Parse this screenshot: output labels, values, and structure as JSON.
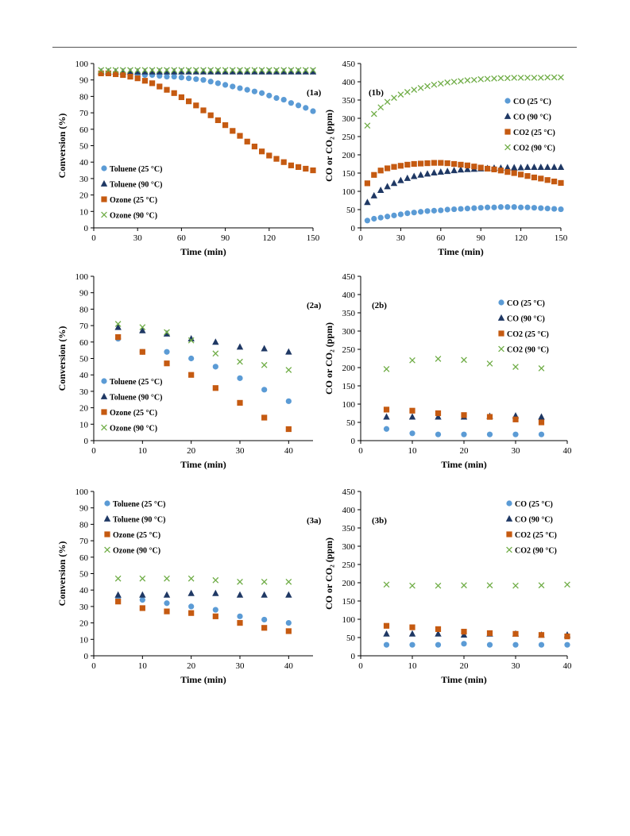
{
  "markers": {
    "circle": "#5b9bd5",
    "triangle": "#1f3864",
    "square": "#c55a11",
    "cross": "#70ad47"
  },
  "chart_data": [
    {
      "id": "1a",
      "type": "scatter",
      "panel_label": "(1a)",
      "xlabel": "Time (min)",
      "ylabel": "Conversion (%)",
      "xlim": [
        0,
        150
      ],
      "ylim": [
        0,
        100
      ],
      "xticks": [
        0,
        30,
        60,
        90,
        120,
        150
      ],
      "yticks": [
        0,
        10,
        20,
        30,
        40,
        50,
        60,
        70,
        80,
        90,
        100
      ],
      "legend_position": "bottom-left",
      "x": [
        5,
        10,
        15,
        20,
        25,
        30,
        35,
        40,
        45,
        50,
        55,
        60,
        65,
        70,
        75,
        80,
        85,
        90,
        95,
        100,
        105,
        110,
        115,
        120,
        125,
        130,
        135,
        140,
        145,
        150
      ],
      "series": [
        {
          "name": "Toluene (25 °C)",
          "marker": "circle",
          "values": [
            94,
            94,
            94,
            93.5,
            93,
            93,
            93,
            93,
            92.5,
            92,
            92,
            91.5,
            91,
            90.5,
            90,
            89,
            88,
            87,
            86,
            85,
            84,
            83,
            82,
            80.5,
            79,
            78,
            76,
            74.5,
            73,
            71
          ]
        },
        {
          "name": "Toluene (90 °C)",
          "marker": "triangle",
          "values": [
            95,
            95,
            95,
            95,
            95,
            95,
            95,
            95,
            95,
            95,
            95,
            95,
            95,
            95,
            95,
            95,
            95,
            95,
            95,
            95,
            95,
            95,
            95,
            95,
            95,
            95,
            95,
            95,
            95,
            95
          ]
        },
        {
          "name": "Ozone    (25 °C)",
          "marker": "square",
          "values": [
            94,
            94,
            93.5,
            93,
            92,
            91,
            89.5,
            88,
            86,
            84,
            82,
            79.5,
            77,
            74.5,
            71.5,
            68.5,
            65.5,
            62.5,
            59,
            56,
            52.5,
            49.5,
            46.5,
            44,
            42,
            40,
            38,
            37,
            36,
            35
          ]
        },
        {
          "name": "Ozone    (90 °C)",
          "marker": "cross",
          "values": [
            96,
            96,
            96,
            96,
            96,
            96,
            96,
            96,
            96,
            96,
            96,
            96,
            96,
            96,
            96,
            96,
            96,
            96,
            96,
            96,
            96,
            96,
            96,
            96,
            96,
            96,
            96,
            96,
            96,
            96
          ]
        }
      ]
    },
    {
      "id": "1b",
      "type": "scatter",
      "panel_label": "(1b)",
      "xlabel": "Time (min)",
      "ylabel": "CO or CO₂ (ppm)",
      "xlim": [
        0,
        150
      ],
      "ylim": [
        0,
        450
      ],
      "xticks": [
        0,
        30,
        60,
        90,
        120,
        150
      ],
      "yticks": [
        0,
        50,
        100,
        150,
        200,
        250,
        300,
        350,
        400,
        450
      ],
      "legend_position": "top-right",
      "x": [
        5,
        10,
        15,
        20,
        25,
        30,
        35,
        40,
        45,
        50,
        55,
        60,
        65,
        70,
        75,
        80,
        85,
        90,
        95,
        100,
        105,
        110,
        115,
        120,
        125,
        130,
        135,
        140,
        145,
        150
      ],
      "series": [
        {
          "name": "CO (25 °C)",
          "marker": "circle",
          "values": [
            20,
            25,
            28,
            31,
            34,
            37,
            40,
            42,
            44,
            46,
            47,
            48,
            50,
            51,
            52,
            53,
            54,
            55,
            56,
            56,
            57,
            57,
            57,
            56,
            56,
            55,
            54,
            53,
            52,
            51
          ]
        },
        {
          "name": "CO (90 °C)",
          "marker": "triangle",
          "values": [
            70,
            88,
            103,
            113,
            122,
            130,
            136,
            141,
            145,
            148,
            151,
            153,
            155,
            157,
            159,
            160,
            161,
            162,
            163,
            164,
            164,
            165,
            165,
            165,
            166,
            166,
            166,
            166,
            166,
            166
          ]
        },
        {
          "name": "CO2 (25 °C)",
          "marker": "square",
          "values": [
            122,
            145,
            157,
            163,
            167,
            170,
            173,
            175,
            176,
            177,
            178,
            178,
            177,
            175,
            173,
            171,
            168,
            165,
            162,
            160,
            157,
            153,
            150,
            146,
            142,
            138,
            135,
            131,
            127,
            123
          ]
        },
        {
          "name": "CO2 (90 °C)",
          "marker": "cross",
          "values": [
            280,
            312,
            330,
            345,
            356,
            365,
            372,
            378,
            383,
            388,
            392,
            395,
            398,
            400,
            402,
            404,
            405,
            407,
            408,
            409,
            410,
            410,
            411,
            411,
            411,
            411,
            411,
            412,
            412,
            412
          ]
        }
      ]
    },
    {
      "id": "2a",
      "type": "scatter",
      "panel_label": "(2a)",
      "xlabel": "Time (min)",
      "ylabel": "Conversion (%)",
      "xlim": [
        0,
        45
      ],
      "ylim": [
        0,
        100
      ],
      "xticks": [
        0,
        10,
        20,
        30,
        40
      ],
      "yticks": [
        0,
        10,
        20,
        30,
        40,
        50,
        60,
        70,
        80,
        90,
        100
      ],
      "legend_position": "left",
      "x": [
        5,
        10,
        15,
        20,
        25,
        30,
        35,
        40
      ],
      "series": [
        {
          "name": "Toluene (25 °C)",
          "marker": "circle",
          "values": [
            62,
            54,
            54,
            50,
            45,
            38,
            31,
            24
          ]
        },
        {
          "name": "Toluene (90 °C)",
          "marker": "triangle",
          "values": [
            69,
            67,
            65,
            62,
            60,
            57,
            56,
            54
          ]
        },
        {
          "name": "Ozone    (25 °C)",
          "marker": "square",
          "values": [
            63,
            54,
            47,
            40,
            32,
            23,
            14,
            7
          ]
        },
        {
          "name": "Ozone    (90 °C)",
          "marker": "cross",
          "values": [
            71,
            69,
            66,
            61,
            53,
            48,
            46,
            43
          ]
        }
      ]
    },
    {
      "id": "2b",
      "type": "scatter",
      "panel_label": "(2b)",
      "xlabel": "Time (min)",
      "ylabel": "CO or CO₂ (ppm)",
      "xlim": [
        0,
        40
      ],
      "ylim": [
        0,
        450
      ],
      "xticks": [
        0,
        10,
        20,
        30,
        40
      ],
      "yticks": [
        0,
        50,
        100,
        150,
        200,
        250,
        300,
        350,
        400,
        450
      ],
      "legend_position": "top-right",
      "x": [
        5,
        10,
        15,
        20,
        25,
        30,
        35
      ],
      "series": [
        {
          "name": "CO (25 °C)",
          "marker": "circle",
          "values": [
            32,
            20,
            17,
            17,
            17,
            17,
            17
          ]
        },
        {
          "name": "CO (90 °C)",
          "marker": "triangle",
          "values": [
            65,
            65,
            65,
            65,
            67,
            68,
            65
          ]
        },
        {
          "name": "CO2 (25 °C)",
          "marker": "square",
          "values": [
            85,
            82,
            75,
            70,
            65,
            58,
            50
          ]
        },
        {
          "name": "CO2 (90 °C)",
          "marker": "cross",
          "values": [
            196,
            220,
            224,
            221,
            211,
            202,
            198
          ]
        }
      ]
    },
    {
      "id": "3a",
      "type": "scatter",
      "panel_label": "(3a)",
      "xlabel": "Time (min)",
      "ylabel": "Conversion (%)",
      "xlim": [
        0,
        45
      ],
      "ylim": [
        0,
        100
      ],
      "xticks": [
        0,
        10,
        20,
        30,
        40
      ],
      "yticks": [
        0,
        10,
        20,
        30,
        40,
        50,
        60,
        70,
        80,
        90,
        100
      ],
      "legend_position": "top-left",
      "x": [
        5,
        10,
        15,
        20,
        25,
        30,
        35,
        40
      ],
      "series": [
        {
          "name": "Toluene (25 °C)",
          "marker": "circle",
          "values": [
            35,
            34,
            32,
            30,
            28,
            24,
            22,
            20
          ]
        },
        {
          "name": "Toluene (90 °C)",
          "marker": "triangle",
          "values": [
            37,
            37,
            37,
            38,
            38,
            37,
            37,
            37
          ]
        },
        {
          "name": "Ozone    (25 °C)",
          "marker": "square",
          "values": [
            33,
            29,
            27,
            26,
            24,
            20,
            17,
            15
          ]
        },
        {
          "name": "Ozone    (90 °C)",
          "marker": "cross",
          "values": [
            47,
            47,
            47,
            47,
            46,
            45,
            45,
            45
          ]
        }
      ]
    },
    {
      "id": "3b",
      "type": "scatter",
      "panel_label": "(3b)",
      "xlabel": "Time (min)",
      "ylabel": "CO or CO₂ (ppm)",
      "xlim": [
        0,
        40
      ],
      "ylim": [
        0,
        450
      ],
      "xticks": [
        0,
        10,
        20,
        30,
        40
      ],
      "yticks": [
        0,
        50,
        100,
        150,
        200,
        250,
        300,
        350,
        400,
        450
      ],
      "legend_position": "top-right",
      "x": [
        5,
        10,
        15,
        20,
        25,
        30,
        35,
        40
      ],
      "series": [
        {
          "name": "CO (25 °C)",
          "marker": "circle",
          "values": [
            30,
            30,
            30,
            33,
            30,
            30,
            30,
            30
          ]
        },
        {
          "name": "CO (90 °C)",
          "marker": "triangle",
          "values": [
            60,
            60,
            60,
            57,
            60,
            60,
            57,
            57
          ]
        },
        {
          "name": "CO2 (25 °C)",
          "marker": "square",
          "values": [
            82,
            78,
            73,
            66,
            62,
            60,
            57,
            53
          ]
        },
        {
          "name": "CO2 (90 °C)",
          "marker": "cross",
          "values": [
            195,
            192,
            192,
            193,
            193,
            192,
            193,
            195
          ]
        }
      ]
    }
  ]
}
